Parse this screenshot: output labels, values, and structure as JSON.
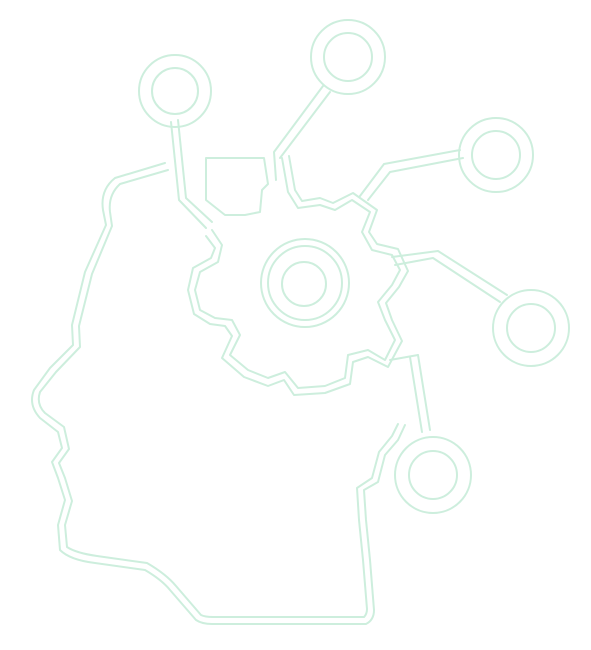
{
  "illustration": {
    "subject": "head-profile-with-gear-and-network-nodes",
    "colors": {
      "background": "#ffffff",
      "line": "#cdeedd"
    },
    "icons": [
      "head-profile-icon",
      "gear-icon",
      "network-node-icon"
    ]
  }
}
